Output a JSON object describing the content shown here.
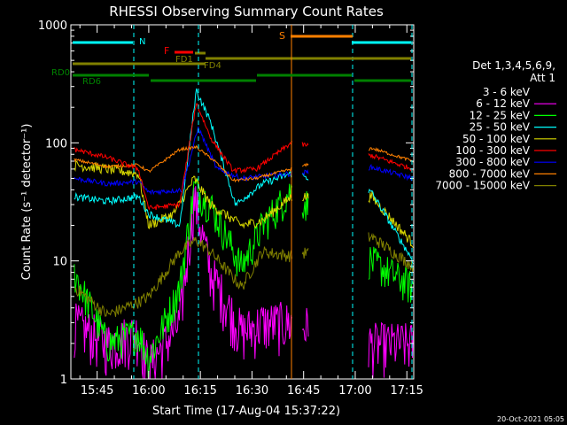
{
  "chart_data": {
    "type": "line",
    "title": "RHESSI Observing Summary Count Rates",
    "xlabel": "Start Time (17-Aug-04 15:37:22)",
    "ylabel": "Count Rate (s⁻¹ detector⁻¹)",
    "x_ticks": [
      "15:45",
      "16:00",
      "16:15",
      "16:30",
      "16:45",
      "17:00",
      "17:15"
    ],
    "y_ticks": [
      "1",
      "10",
      "100",
      "1000"
    ],
    "ylim": [
      1,
      1000
    ],
    "yscale": "log",
    "legend_header": [
      "Det 1,3,4,5,6,9,",
      "Att 1"
    ],
    "footer": "20-Oct-2021 05:05",
    "series": [
      {
        "name": "3 - 6 keV",
        "color": "#000000"
      },
      {
        "name": "6 - 12 keV",
        "color": "#ff00ff"
      },
      {
        "name": "12 - 25 keV",
        "color": "#00ff00"
      },
      {
        "name": "25 - 50 keV",
        "color": "#00ffff"
      },
      {
        "name": "50 - 100 keV",
        "color": "#d8d800"
      },
      {
        "name": "100 - 300 keV",
        "color": "#ff0000"
      },
      {
        "name": "300 - 800 keV",
        "color": "#0000ff"
      },
      {
        "name": "800 - 7000 keV",
        "color": "#ff8000"
      },
      {
        "name": "7000 - 15000 keV",
        "color": "#808000"
      }
    ],
    "annotations": [
      {
        "label": "N",
        "color": "#00ffff"
      },
      {
        "label": "F",
        "color": "#ff0000"
      },
      {
        "label": "FD1",
        "color": "#808000"
      },
      {
        "label": "FD4",
        "color": "#808000"
      },
      {
        "label": "S",
        "color": "#ff8000"
      },
      {
        "label": "RD0",
        "color": "#008000"
      },
      {
        "label": "RD6",
        "color": "#008000"
      }
    ]
  }
}
